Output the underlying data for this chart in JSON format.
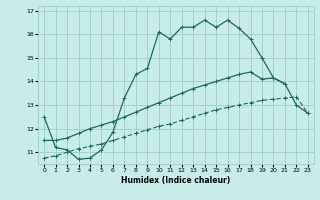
{
  "title": "",
  "xlabel": "Humidex (Indice chaleur)",
  "ylabel": "",
  "xlim": [
    -0.5,
    23.5
  ],
  "ylim": [
    10.5,
    17.2
  ],
  "yticks": [
    11,
    12,
    13,
    14,
    15,
    16,
    17
  ],
  "xticks": [
    0,
    1,
    2,
    3,
    4,
    5,
    6,
    7,
    8,
    9,
    10,
    11,
    12,
    13,
    14,
    15,
    16,
    17,
    18,
    19,
    20,
    21,
    22,
    23
  ],
  "background_color": "#c8ece6",
  "grid_color": "#a0ccc6",
  "line_color": "#1a6b5a",
  "line1_x": [
    0,
    1,
    2,
    3,
    4,
    5,
    6,
    7,
    8,
    9,
    10,
    11,
    12,
    13,
    14,
    15,
    16,
    17,
    18,
    19,
    20,
    21
  ],
  "line1_y": [
    12.5,
    11.2,
    11.1,
    10.7,
    10.75,
    11.1,
    11.85,
    13.3,
    14.3,
    14.55,
    16.1,
    15.8,
    16.3,
    16.3,
    16.6,
    16.3,
    16.6,
    16.25,
    15.8,
    15.0,
    14.15,
    13.9
  ],
  "line2_x": [
    0,
    1,
    2,
    3,
    4,
    5,
    6,
    7,
    8,
    9,
    10,
    11,
    12,
    13,
    14,
    15,
    16,
    17,
    18,
    19,
    20,
    21,
    22,
    23
  ],
  "line2_y": [
    11.5,
    11.5,
    11.6,
    11.8,
    12.0,
    12.15,
    12.3,
    12.5,
    12.7,
    12.9,
    13.1,
    13.3,
    13.5,
    13.7,
    13.85,
    14.0,
    14.15,
    14.3,
    14.4,
    14.1,
    14.15,
    13.9,
    13.0,
    12.65
  ],
  "line3_x": [
    0,
    1,
    2,
    3,
    4,
    5,
    6,
    7,
    8,
    9,
    10,
    11,
    12,
    13,
    14,
    15,
    16,
    17,
    18,
    19,
    20,
    21,
    22,
    23
  ],
  "line3_y": [
    10.75,
    10.85,
    11.0,
    11.15,
    11.25,
    11.35,
    11.5,
    11.65,
    11.8,
    11.95,
    12.1,
    12.2,
    12.35,
    12.5,
    12.65,
    12.8,
    12.9,
    13.0,
    13.1,
    13.2,
    13.25,
    13.3,
    13.35,
    12.65
  ]
}
